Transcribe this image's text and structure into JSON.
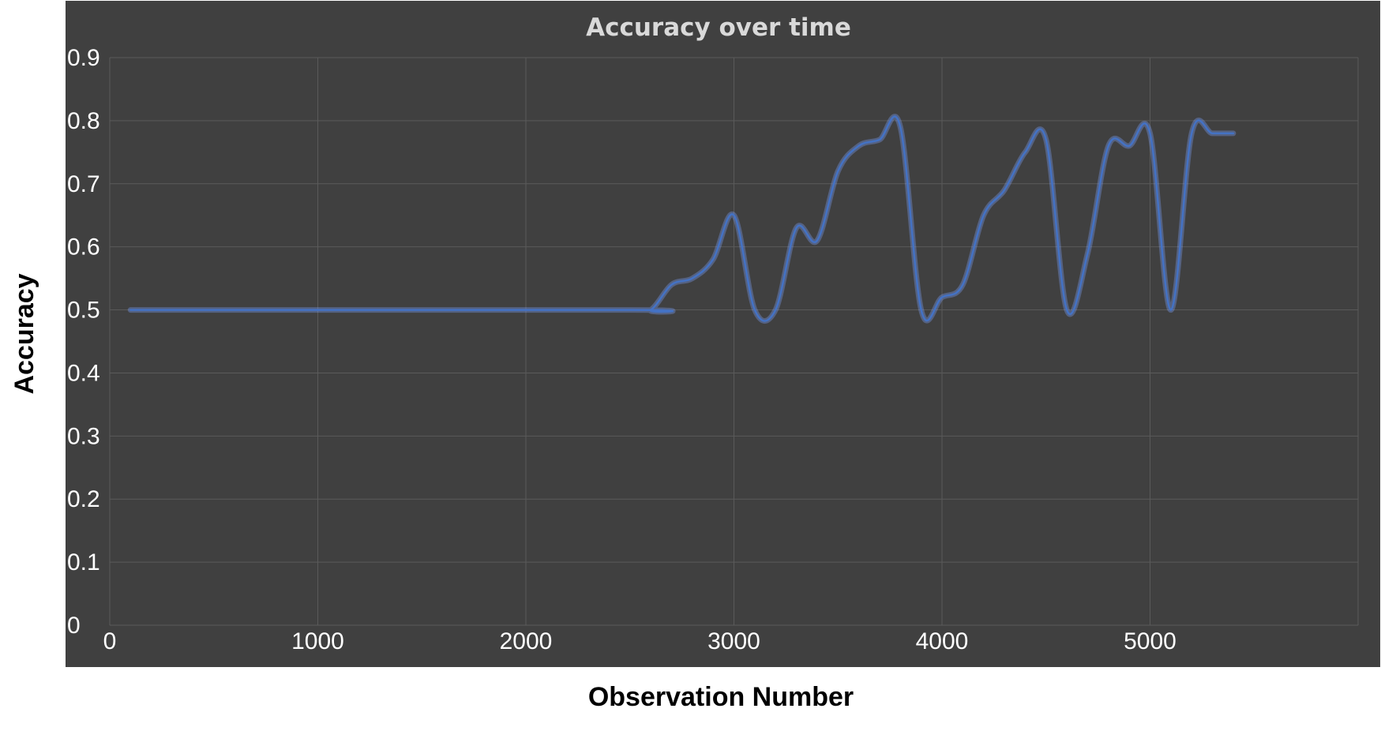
{
  "chart_data": {
    "type": "line",
    "title": "Accuracy over time",
    "xlabel": "Observation Number",
    "ylabel": "Accuracy",
    "xlim": [
      0,
      6000
    ],
    "ylim": [
      0,
      0.9
    ],
    "xticks": [
      0,
      1000,
      2000,
      3000,
      4000,
      5000
    ],
    "xtick_labels": [
      "0",
      "1000",
      "2000",
      "3000",
      "4000",
      "5000"
    ],
    "yticks": [
      0,
      0.1,
      0.2,
      0.3,
      0.4,
      0.5,
      0.6,
      0.7,
      0.8,
      0.9
    ],
    "ytick_labels": [
      "0",
      "0.1",
      "0.2",
      "0.3",
      "0.4",
      "0.5",
      "0.6",
      "0.7",
      "0.8",
      "0.9"
    ],
    "grid": true,
    "legend": "none",
    "colors": {
      "background": "#404040",
      "series": "#4472c4",
      "grid": "#5a5a5a"
    },
    "series": [
      {
        "x": [
          100,
          2500,
          2600,
          2700,
          2800,
          2900,
          3000,
          3100,
          3200,
          3300,
          3400,
          3500,
          3600,
          3700,
          3800,
          3900,
          4000,
          4100,
          4200,
          4300,
          4400,
          4500,
          4600,
          4700,
          4800,
          4900,
          5000,
          5100,
          5200,
          5300,
          5400
        ],
        "values": [
          0.5,
          0.5,
          0.5,
          0.54,
          0.55,
          0.58,
          0.65,
          0.5,
          0.5,
          0.63,
          0.61,
          0.72,
          0.76,
          0.77,
          0.79,
          0.5,
          0.52,
          0.54,
          0.65,
          0.69,
          0.75,
          0.77,
          0.5,
          0.59,
          0.76,
          0.76,
          0.78,
          0.5,
          0.78,
          0.78,
          0.78
        ]
      }
    ]
  }
}
